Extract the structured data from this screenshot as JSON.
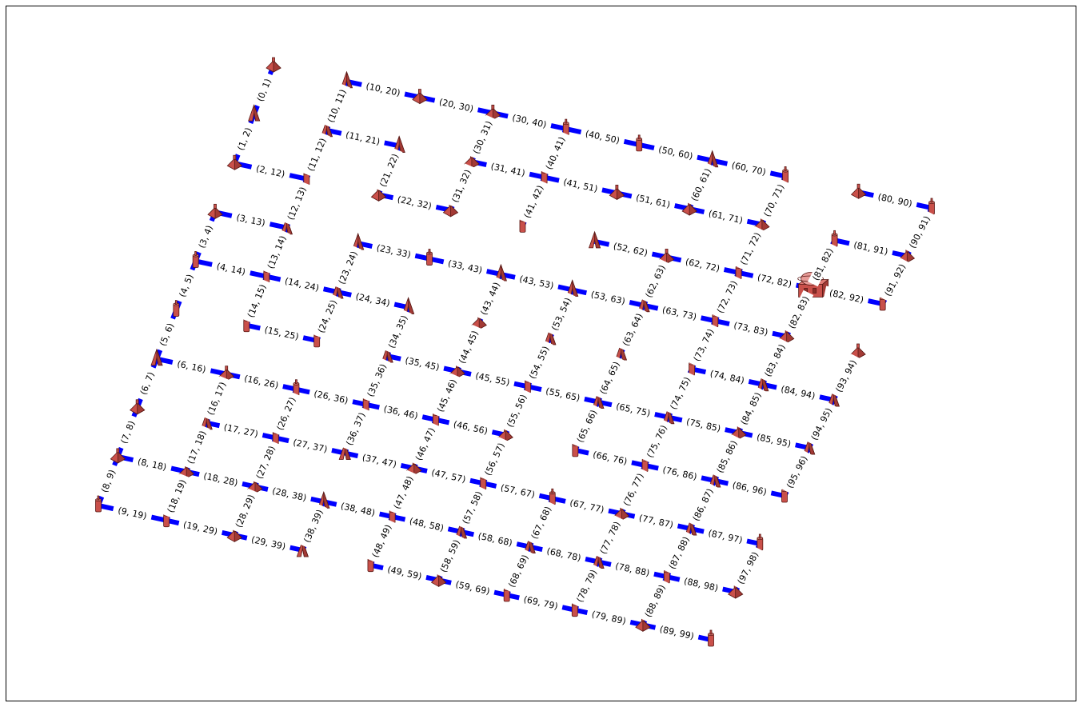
{
  "graph": {
    "edge_color": "#0000ff",
    "node_color": "#c9504a",
    "highlight_node_color": "#e79b97",
    "nodes": [
      {
        "id": 0,
        "icon": "cone"
      },
      {
        "id": 1,
        "icon": "tent"
      },
      {
        "id": 2,
        "icon": "cone"
      },
      {
        "id": 3,
        "icon": "cone"
      },
      {
        "id": 4,
        "icon": "cylinder"
      },
      {
        "id": 5,
        "icon": "cylinder"
      },
      {
        "id": 6,
        "icon": "tent"
      },
      {
        "id": 7,
        "icon": "cone"
      },
      {
        "id": 8,
        "icon": "cone"
      },
      {
        "id": 9,
        "icon": "cylinder"
      },
      {
        "id": 10,
        "icon": "tent"
      },
      {
        "id": 11,
        "icon": "tent"
      },
      {
        "id": 12,
        "icon": "cylinder"
      },
      {
        "id": 13,
        "icon": "tent"
      },
      {
        "id": 14,
        "icon": "cylinder"
      },
      {
        "id": 15,
        "icon": "cylinder"
      },
      {
        "id": 16,
        "icon": "cone"
      },
      {
        "id": 17,
        "icon": "tent"
      },
      {
        "id": 18,
        "icon": "cone"
      },
      {
        "id": 19,
        "icon": "cylinder"
      },
      {
        "id": 20,
        "icon": "cone"
      },
      {
        "id": 21,
        "icon": "tent"
      },
      {
        "id": 22,
        "icon": "cone"
      },
      {
        "id": 23,
        "icon": "tent"
      },
      {
        "id": 24,
        "icon": "tent"
      },
      {
        "id": 25,
        "icon": "cylinder"
      },
      {
        "id": 26,
        "icon": "cylinder"
      },
      {
        "id": 27,
        "icon": "cylinder"
      },
      {
        "id": 28,
        "icon": "cone"
      },
      {
        "id": 29,
        "icon": "cone"
      },
      {
        "id": 30,
        "icon": "cone"
      },
      {
        "id": 31,
        "icon": "cone"
      },
      {
        "id": 32,
        "icon": "cone"
      },
      {
        "id": 33,
        "icon": "cylinder"
      },
      {
        "id": 34,
        "icon": "tent"
      },
      {
        "id": 35,
        "icon": "tent"
      },
      {
        "id": 36,
        "icon": "cylinder"
      },
      {
        "id": 37,
        "icon": "tent"
      },
      {
        "id": 38,
        "icon": "tent"
      },
      {
        "id": 39,
        "icon": "tent"
      },
      {
        "id": 40,
        "icon": "cylinder"
      },
      {
        "id": 41,
        "icon": "cylinder"
      },
      {
        "id": 42,
        "icon": "cylinder"
      },
      {
        "id": 43,
        "icon": "tent"
      },
      {
        "id": 44,
        "icon": "cone"
      },
      {
        "id": 45,
        "icon": "cone"
      },
      {
        "id": 46,
        "icon": "cylinder"
      },
      {
        "id": 47,
        "icon": "cone"
      },
      {
        "id": 48,
        "icon": "cylinder"
      },
      {
        "id": 49,
        "icon": "cylinder"
      },
      {
        "id": 50,
        "icon": "cylinder"
      },
      {
        "id": 51,
        "icon": "cone"
      },
      {
        "id": 52,
        "icon": "tent"
      },
      {
        "id": 53,
        "icon": "tent"
      },
      {
        "id": 54,
        "icon": "tent"
      },
      {
        "id": 55,
        "icon": "cylinder"
      },
      {
        "id": 56,
        "icon": "cone"
      },
      {
        "id": 57,
        "icon": "cylinder"
      },
      {
        "id": 58,
        "icon": "tent"
      },
      {
        "id": 59,
        "icon": "cone"
      },
      {
        "id": 60,
        "icon": "tent"
      },
      {
        "id": 61,
        "icon": "cone"
      },
      {
        "id": 62,
        "icon": "cone"
      },
      {
        "id": 63,
        "icon": "tent"
      },
      {
        "id": 64,
        "icon": "tent"
      },
      {
        "id": 65,
        "icon": "tent"
      },
      {
        "id": 66,
        "icon": "cylinder"
      },
      {
        "id": 67,
        "icon": "cylinder"
      },
      {
        "id": 68,
        "icon": "tent"
      },
      {
        "id": 69,
        "icon": "cylinder"
      },
      {
        "id": 70,
        "icon": "cylinder"
      },
      {
        "id": 71,
        "icon": "cone"
      },
      {
        "id": 72,
        "icon": "cylinder"
      },
      {
        "id": 73,
        "icon": "cylinder"
      },
      {
        "id": 74,
        "icon": "cylinder"
      },
      {
        "id": 75,
        "icon": "tent"
      },
      {
        "id": 76,
        "icon": "cylinder"
      },
      {
        "id": 77,
        "icon": "cone"
      },
      {
        "id": 78,
        "icon": "tent"
      },
      {
        "id": 79,
        "icon": "cylinder"
      },
      {
        "id": 80,
        "icon": "cone"
      },
      {
        "id": 81,
        "icon": "cylinder"
      },
      {
        "id": 82,
        "icon": "highlight"
      },
      {
        "id": 83,
        "icon": "cone"
      },
      {
        "id": 84,
        "icon": "tent"
      },
      {
        "id": 85,
        "icon": "cone"
      },
      {
        "id": 86,
        "icon": "tent"
      },
      {
        "id": 87,
        "icon": "tent"
      },
      {
        "id": 88,
        "icon": "cylinder"
      },
      {
        "id": 89,
        "icon": "cone"
      },
      {
        "id": 90,
        "icon": "cylinder"
      },
      {
        "id": 91,
        "icon": "cone"
      },
      {
        "id": 92,
        "icon": "cylinder"
      },
      {
        "id": 93,
        "icon": "cone"
      },
      {
        "id": 94,
        "icon": "tent"
      },
      {
        "id": 95,
        "icon": "tent"
      },
      {
        "id": 96,
        "icon": "cylinder"
      },
      {
        "id": 97,
        "icon": "cylinder"
      },
      {
        "id": 98,
        "icon": "cone"
      },
      {
        "id": 99,
        "icon": "cylinder"
      }
    ],
    "edges": [
      {
        "source": 0,
        "target": 1,
        "label": "(0, 1)"
      },
      {
        "source": 1,
        "target": 2,
        "label": "(1, 2)"
      },
      {
        "source": 2,
        "target": 12,
        "label": "(2, 12)"
      },
      {
        "source": 3,
        "target": 4,
        "label": "(3, 4)"
      },
      {
        "source": 3,
        "target": 13,
        "label": "(3, 13)"
      },
      {
        "source": 4,
        "target": 5,
        "label": "(4, 5)"
      },
      {
        "source": 4,
        "target": 14,
        "label": "(4, 14)"
      },
      {
        "source": 5,
        "target": 6,
        "label": "(5, 6)"
      },
      {
        "source": 6,
        "target": 7,
        "label": "(6, 7)"
      },
      {
        "source": 6,
        "target": 16,
        "label": "(6, 16)"
      },
      {
        "source": 7,
        "target": 8,
        "label": "(7, 8)"
      },
      {
        "source": 8,
        "target": 9,
        "label": "(8, 9)"
      },
      {
        "source": 8,
        "target": 18,
        "label": "(8, 18)"
      },
      {
        "source": 9,
        "target": 19,
        "label": "(9, 19)"
      },
      {
        "source": 10,
        "target": 11,
        "label": "(10, 11)"
      },
      {
        "source": 10,
        "target": 20,
        "label": "(10, 20)"
      },
      {
        "source": 11,
        "target": 12,
        "label": "(11, 12)"
      },
      {
        "source": 11,
        "target": 21,
        "label": "(11, 21)"
      },
      {
        "source": 12,
        "target": 13,
        "label": "(12, 13)"
      },
      {
        "source": 13,
        "target": 14,
        "label": "(13, 14)"
      },
      {
        "source": 14,
        "target": 15,
        "label": "(14, 15)"
      },
      {
        "source": 14,
        "target": 24,
        "label": "(14, 24)"
      },
      {
        "source": 15,
        "target": 25,
        "label": "(15, 25)"
      },
      {
        "source": 16,
        "target": 17,
        "label": "(16, 17)"
      },
      {
        "source": 16,
        "target": 26,
        "label": "(16, 26)"
      },
      {
        "source": 17,
        "target": 18,
        "label": "(17, 18)"
      },
      {
        "source": 17,
        "target": 27,
        "label": "(17, 27)"
      },
      {
        "source": 18,
        "target": 19,
        "label": "(18, 19)"
      },
      {
        "source": 18,
        "target": 28,
        "label": "(18, 28)"
      },
      {
        "source": 19,
        "target": 29,
        "label": "(19, 29)"
      },
      {
        "source": 20,
        "target": 30,
        "label": "(20, 30)"
      },
      {
        "source": 21,
        "target": 22,
        "label": "(21, 22)"
      },
      {
        "source": 22,
        "target": 32,
        "label": "(22, 32)"
      },
      {
        "source": 23,
        "target": 24,
        "label": "(23, 24)"
      },
      {
        "source": 23,
        "target": 33,
        "label": "(23, 33)"
      },
      {
        "source": 24,
        "target": 25,
        "label": "(24, 25)"
      },
      {
        "source": 24,
        "target": 34,
        "label": "(24, 34)"
      },
      {
        "source": 26,
        "target": 27,
        "label": "(26, 27)"
      },
      {
        "source": 26,
        "target": 36,
        "label": "(26, 36)"
      },
      {
        "source": 27,
        "target": 28,
        "label": "(27, 28)"
      },
      {
        "source": 27,
        "target": 37,
        "label": "(27, 37)"
      },
      {
        "source": 28,
        "target": 29,
        "label": "(28, 29)"
      },
      {
        "source": 28,
        "target": 38,
        "label": "(28, 38)"
      },
      {
        "source": 29,
        "target": 39,
        "label": "(29, 39)"
      },
      {
        "source": 30,
        "target": 31,
        "label": "(30, 31)"
      },
      {
        "source": 30,
        "target": 40,
        "label": "(30, 40)"
      },
      {
        "source": 31,
        "target": 32,
        "label": "(31, 32)"
      },
      {
        "source": 31,
        "target": 41,
        "label": "(31, 41)"
      },
      {
        "source": 33,
        "target": 43,
        "label": "(33, 43)"
      },
      {
        "source": 34,
        "target": 35,
        "label": "(34, 35)"
      },
      {
        "source": 35,
        "target": 36,
        "label": "(35, 36)"
      },
      {
        "source": 35,
        "target": 45,
        "label": "(35, 45)"
      },
      {
        "source": 36,
        "target": 37,
        "label": "(36, 37)"
      },
      {
        "source": 36,
        "target": 46,
        "label": "(36, 46)"
      },
      {
        "source": 37,
        "target": 47,
        "label": "(37, 47)"
      },
      {
        "source": 38,
        "target": 39,
        "label": "(38, 39)"
      },
      {
        "source": 38,
        "target": 48,
        "label": "(38, 48)"
      },
      {
        "source": 40,
        "target": 41,
        "label": "(40, 41)"
      },
      {
        "source": 40,
        "target": 50,
        "label": "(40, 50)"
      },
      {
        "source": 41,
        "target": 42,
        "label": "(41, 42)"
      },
      {
        "source": 41,
        "target": 51,
        "label": "(41, 51)"
      },
      {
        "source": 43,
        "target": 44,
        "label": "(43, 44)"
      },
      {
        "source": 43,
        "target": 53,
        "label": "(43, 53)"
      },
      {
        "source": 44,
        "target": 45,
        "label": "(44, 45)"
      },
      {
        "source": 45,
        "target": 46,
        "label": "(45, 46)"
      },
      {
        "source": 45,
        "target": 55,
        "label": "(45, 55)"
      },
      {
        "source": 46,
        "target": 47,
        "label": "(46, 47)"
      },
      {
        "source": 46,
        "target": 56,
        "label": "(46, 56)"
      },
      {
        "source": 47,
        "target": 48,
        "label": "(47, 48)"
      },
      {
        "source": 47,
        "target": 57,
        "label": "(47, 57)"
      },
      {
        "source": 48,
        "target": 49,
        "label": "(48, 49)"
      },
      {
        "source": 48,
        "target": 58,
        "label": "(48, 58)"
      },
      {
        "source": 49,
        "target": 59,
        "label": "(49, 59)"
      },
      {
        "source": 50,
        "target": 60,
        "label": "(50, 60)"
      },
      {
        "source": 51,
        "target": 61,
        "label": "(51, 61)"
      },
      {
        "source": 52,
        "target": 62,
        "label": "(52, 62)"
      },
      {
        "source": 53,
        "target": 54,
        "label": "(53, 54)"
      },
      {
        "source": 53,
        "target": 63,
        "label": "(53, 63)"
      },
      {
        "source": 54,
        "target": 55,
        "label": "(54, 55)"
      },
      {
        "source": 55,
        "target": 56,
        "label": "(55, 56)"
      },
      {
        "source": 55,
        "target": 65,
        "label": "(55, 65)"
      },
      {
        "source": 56,
        "target": 57,
        "label": "(56, 57)"
      },
      {
        "source": 57,
        "target": 58,
        "label": "(57, 58)"
      },
      {
        "source": 57,
        "target": 67,
        "label": "(57, 67)"
      },
      {
        "source": 58,
        "target": 59,
        "label": "(58, 59)"
      },
      {
        "source": 58,
        "target": 68,
        "label": "(58, 68)"
      },
      {
        "source": 59,
        "target": 69,
        "label": "(59, 69)"
      },
      {
        "source": 60,
        "target": 61,
        "label": "(60, 61)"
      },
      {
        "source": 60,
        "target": 70,
        "label": "(60, 70)"
      },
      {
        "source": 61,
        "target": 71,
        "label": "(61, 71)"
      },
      {
        "source": 62,
        "target": 63,
        "label": "(62, 63)"
      },
      {
        "source": 62,
        "target": 72,
        "label": "(62, 72)"
      },
      {
        "source": 63,
        "target": 64,
        "label": "(63, 64)"
      },
      {
        "source": 63,
        "target": 73,
        "label": "(63, 73)"
      },
      {
        "source": 64,
        "target": 65,
        "label": "(64, 65)"
      },
      {
        "source": 65,
        "target": 66,
        "label": "(65, 66)"
      },
      {
        "source": 65,
        "target": 75,
        "label": "(65, 75)"
      },
      {
        "source": 66,
        "target": 76,
        "label": "(66, 76)"
      },
      {
        "source": 67,
        "target": 68,
        "label": "(67, 68)"
      },
      {
        "source": 67,
        "target": 77,
        "label": "(67, 77)"
      },
      {
        "source": 68,
        "target": 69,
        "label": "(68, 69)"
      },
      {
        "source": 68,
        "target": 78,
        "label": "(68, 78)"
      },
      {
        "source": 69,
        "target": 79,
        "label": "(69, 79)"
      },
      {
        "source": 70,
        "target": 71,
        "label": "(70, 71)"
      },
      {
        "source": 71,
        "target": 72,
        "label": "(71, 72)"
      },
      {
        "source": 72,
        "target": 73,
        "label": "(72, 73)"
      },
      {
        "source": 72,
        "target": 82,
        "label": "(72, 82)"
      },
      {
        "source": 73,
        "target": 74,
        "label": "(73, 74)"
      },
      {
        "source": 73,
        "target": 83,
        "label": "(73, 83)"
      },
      {
        "source": 74,
        "target": 75,
        "label": "(74, 75)"
      },
      {
        "source": 74,
        "target": 84,
        "label": "(74, 84)"
      },
      {
        "source": 75,
        "target": 76,
        "label": "(75, 76)"
      },
      {
        "source": 75,
        "target": 85,
        "label": "(75, 85)"
      },
      {
        "source": 76,
        "target": 77,
        "label": "(76, 77)"
      },
      {
        "source": 76,
        "target": 86,
        "label": "(76, 86)"
      },
      {
        "source": 77,
        "target": 78,
        "label": "(77, 78)"
      },
      {
        "source": 77,
        "target": 87,
        "label": "(77, 87)"
      },
      {
        "source": 78,
        "target": 79,
        "label": "(78, 79)"
      },
      {
        "source": 78,
        "target": 88,
        "label": "(78, 88)"
      },
      {
        "source": 79,
        "target": 89,
        "label": "(79, 89)"
      },
      {
        "source": 80,
        "target": 90,
        "label": "(80, 90)"
      },
      {
        "source": 81,
        "target": 82,
        "label": "(81, 82)"
      },
      {
        "source": 81,
        "target": 91,
        "label": "(81, 91)"
      },
      {
        "source": 82,
        "target": 83,
        "label": "(82, 83)"
      },
      {
        "source": 82,
        "target": 92,
        "label": "(82, 92)"
      },
      {
        "source": 83,
        "target": 84,
        "label": "(83, 84)"
      },
      {
        "source": 84,
        "target": 85,
        "label": "(84, 85)"
      },
      {
        "source": 84,
        "target": 94,
        "label": "(84, 94)"
      },
      {
        "source": 85,
        "target": 86,
        "label": "(85, 86)"
      },
      {
        "source": 85,
        "target": 95,
        "label": "(85, 95)"
      },
      {
        "source": 86,
        "target": 87,
        "label": "(86, 87)"
      },
      {
        "source": 86,
        "target": 96,
        "label": "(86, 96)"
      },
      {
        "source": 87,
        "target": 88,
        "label": "(87, 88)"
      },
      {
        "source": 87,
        "target": 97,
        "label": "(87, 97)"
      },
      {
        "source": 88,
        "target": 89,
        "label": "(88, 89)"
      },
      {
        "source": 88,
        "target": 98,
        "label": "(88, 98)"
      },
      {
        "source": 89,
        "target": 99,
        "label": "(89, 99)"
      },
      {
        "source": 90,
        "target": 91,
        "label": "(90, 91)"
      },
      {
        "source": 91,
        "target": 92,
        "label": "(91, 92)"
      },
      {
        "source": 93,
        "target": 94,
        "label": "(93, 94)"
      },
      {
        "source": 94,
        "target": 95,
        "label": "(94, 95)"
      },
      {
        "source": 95,
        "target": 96,
        "label": "(95, 96)"
      },
      {
        "source": 97,
        "target": 98,
        "label": "(97, 98)"
      }
    ]
  }
}
